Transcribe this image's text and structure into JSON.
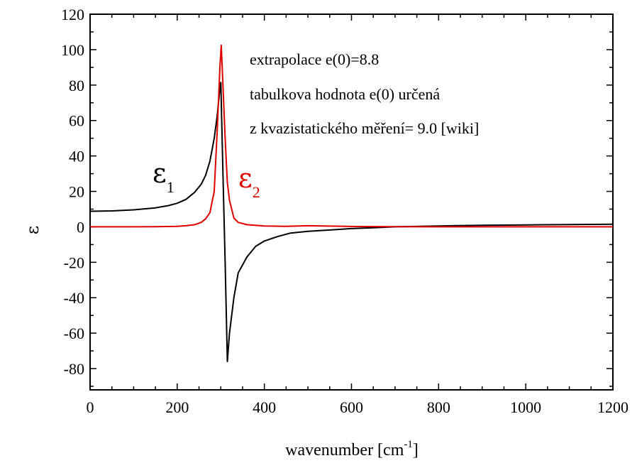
{
  "chart_data": {
    "type": "line",
    "title": "",
    "xlabel": "wavenumber [cm",
    "xlabel_sup": "-1",
    "xlabel_suffix": "]",
    "ylabel": "ε",
    "xlim": [
      0,
      1200
    ],
    "ylim": [
      -92,
      120
    ],
    "xticks": [
      0,
      200,
      400,
      600,
      800,
      1000,
      1200
    ],
    "yticks": [
      -80,
      -60,
      -40,
      -20,
      0,
      20,
      40,
      60,
      80,
      100,
      120
    ],
    "grid": false,
    "annotations": [
      "extrapolace e(0)=8.8",
      "tabulkova hodnota e(0) určená",
      "z kvazistatického měření= 9.0 [wiki]"
    ],
    "series": [
      {
        "name": "ε1",
        "label_symbol": "ε",
        "label_sub": "1",
        "color": "#000000",
        "x": [
          0,
          50,
          100,
          150,
          180,
          200,
          220,
          240,
          255,
          265,
          275,
          285,
          292,
          298,
          300,
          305,
          310,
          315,
          320,
          330,
          340,
          360,
          380,
          400,
          430,
          460,
          500,
          550,
          600,
          650,
          700,
          800,
          900,
          1000,
          1100,
          1200
        ],
        "y": [
          8.8,
          9.0,
          9.6,
          10.7,
          12.0,
          13.3,
          15.5,
          19.5,
          24.0,
          29.0,
          37.0,
          50.0,
          63.0,
          78.0,
          81.5,
          30.0,
          -20.0,
          -76.0,
          -60.0,
          -40.0,
          -26.0,
          -17.0,
          -11.0,
          -8.0,
          -5.5,
          -3.5,
          -2.5,
          -1.8,
          -1.0,
          -0.5,
          0.0,
          0.5,
          0.9,
          1.1,
          1.3,
          1.5
        ]
      },
      {
        "name": "ε2",
        "label_symbol": "ε",
        "label_sub": "2",
        "color": "#e00000",
        "x": [
          0,
          100,
          150,
          200,
          220,
          240,
          255,
          265,
          275,
          285,
          292,
          298,
          301,
          305,
          310,
          315,
          320,
          330,
          340,
          360,
          400,
          450,
          500,
          600,
          700,
          800,
          1000,
          1200
        ],
        "y": [
          0,
          0,
          0.1,
          0.3,
          0.6,
          1.2,
          2.5,
          4.5,
          8.0,
          20.0,
          55.0,
          90.0,
          102.5,
          80.0,
          50.0,
          25.0,
          15.0,
          5.0,
          2.5,
          1.2,
          0.5,
          0.3,
          0.6,
          0.2,
          0.1,
          0.0,
          0.0,
          0.0
        ]
      }
    ]
  }
}
